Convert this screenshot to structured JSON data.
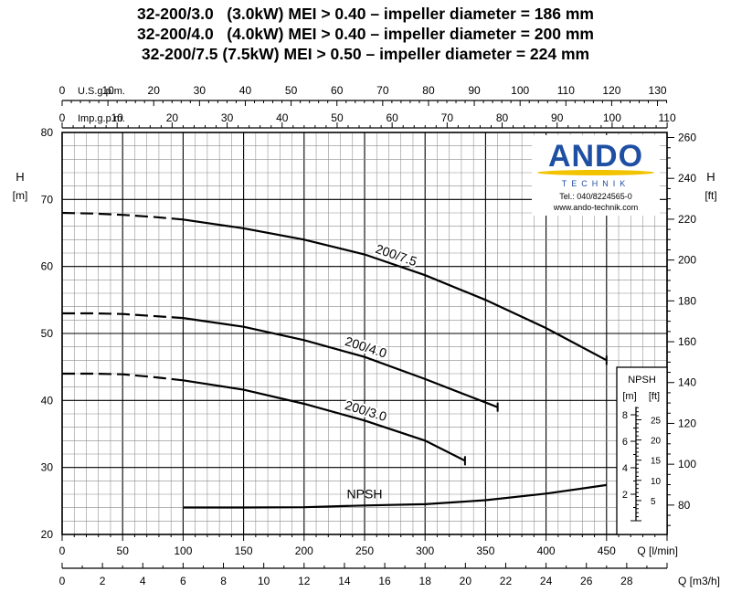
{
  "titles": [
    "32-200/3.0   (3.0kW) MEI > 0.40 – impeller diameter = 186 mm",
    "32-200/4.0   (4.0kW) MEI > 0.40 – impeller diameter = 200 mm",
    "32-200/7.5 (7.5kW) MEI > 0.50 – impeller diameter = 224 mm"
  ],
  "logo": {
    "brand": "ANDO",
    "sub": "TECHNIK",
    "tel": "Tel.: 040/8224565-0",
    "web": "www.ando-technik.com"
  },
  "chart_data": {
    "type": "line",
    "x": {
      "label": "Q [l/min]",
      "range": [
        0,
        500
      ],
      "ticks": [
        0,
        50,
        100,
        150,
        200,
        250,
        300,
        350,
        400,
        450
      ]
    },
    "x_m3h": {
      "label": "Q [m3/h]",
      "range": [
        0,
        30
      ],
      "ticks": [
        0,
        2,
        4,
        6,
        8,
        10,
        12,
        14,
        16,
        18,
        20,
        22,
        24,
        26,
        28
      ]
    },
    "x_usgpm": {
      "label": "U.S.g.p.m.",
      "ticks": [
        0,
        10,
        20,
        30,
        40,
        50,
        60,
        70,
        80,
        90,
        100,
        110,
        120,
        130
      ]
    },
    "x_impgpm": {
      "label": "Imp.g.p.m.",
      "ticks": [
        0,
        10,
        20,
        30,
        40,
        50,
        60,
        70,
        80,
        90,
        100,
        110
      ]
    },
    "y": {
      "label": "H",
      "unit": "[m]",
      "range": [
        20,
        80
      ],
      "ticks": [
        20,
        30,
        40,
        50,
        60,
        70,
        80
      ]
    },
    "y_ft": {
      "label": "H",
      "unit": "[ft]",
      "ticks": [
        80,
        100,
        120,
        140,
        160,
        180,
        200,
        220,
        240,
        260
      ]
    },
    "grid": true,
    "series": [
      {
        "name": "200/7.5",
        "dashed_until": 100,
        "points": [
          [
            0,
            68
          ],
          [
            25,
            67.9
          ],
          [
            50,
            67.7
          ],
          [
            75,
            67.4
          ],
          [
            100,
            67
          ],
          [
            150,
            65.7
          ],
          [
            200,
            64
          ],
          [
            250,
            61.8
          ],
          [
            300,
            58.7
          ],
          [
            350,
            55
          ],
          [
            400,
            50.8
          ],
          [
            450,
            46
          ]
        ]
      },
      {
        "name": "200/4.0",
        "dashed_until": 100,
        "points": [
          [
            0,
            53
          ],
          [
            25,
            53
          ],
          [
            50,
            52.9
          ],
          [
            75,
            52.6
          ],
          [
            100,
            52.3
          ],
          [
            150,
            51
          ],
          [
            200,
            49
          ],
          [
            250,
            46.5
          ],
          [
            300,
            43.2
          ],
          [
            360,
            39
          ]
        ]
      },
      {
        "name": "200/3.0",
        "dashed_until": 100,
        "points": [
          [
            0,
            44
          ],
          [
            25,
            44
          ],
          [
            50,
            43.9
          ],
          [
            75,
            43.5
          ],
          [
            100,
            43
          ],
          [
            150,
            41.6
          ],
          [
            200,
            39.5
          ],
          [
            250,
            37
          ],
          [
            300,
            34
          ],
          [
            333,
            31
          ]
        ]
      }
    ],
    "npsh": {
      "name": "NPSH",
      "title": "NPSH",
      "units": [
        "[m]",
        "[ft]"
      ],
      "m_ticks": [
        2,
        4,
        6,
        8
      ],
      "ft_ticks": [
        5,
        10,
        15,
        20,
        25
      ],
      "points": [
        [
          100,
          1.0
        ],
        [
          150,
          1.0
        ],
        [
          200,
          1.02
        ],
        [
          250,
          1.15
        ],
        [
          300,
          1.25
        ],
        [
          350,
          1.55
        ],
        [
          400,
          2.05
        ],
        [
          450,
          2.7
        ]
      ]
    }
  }
}
